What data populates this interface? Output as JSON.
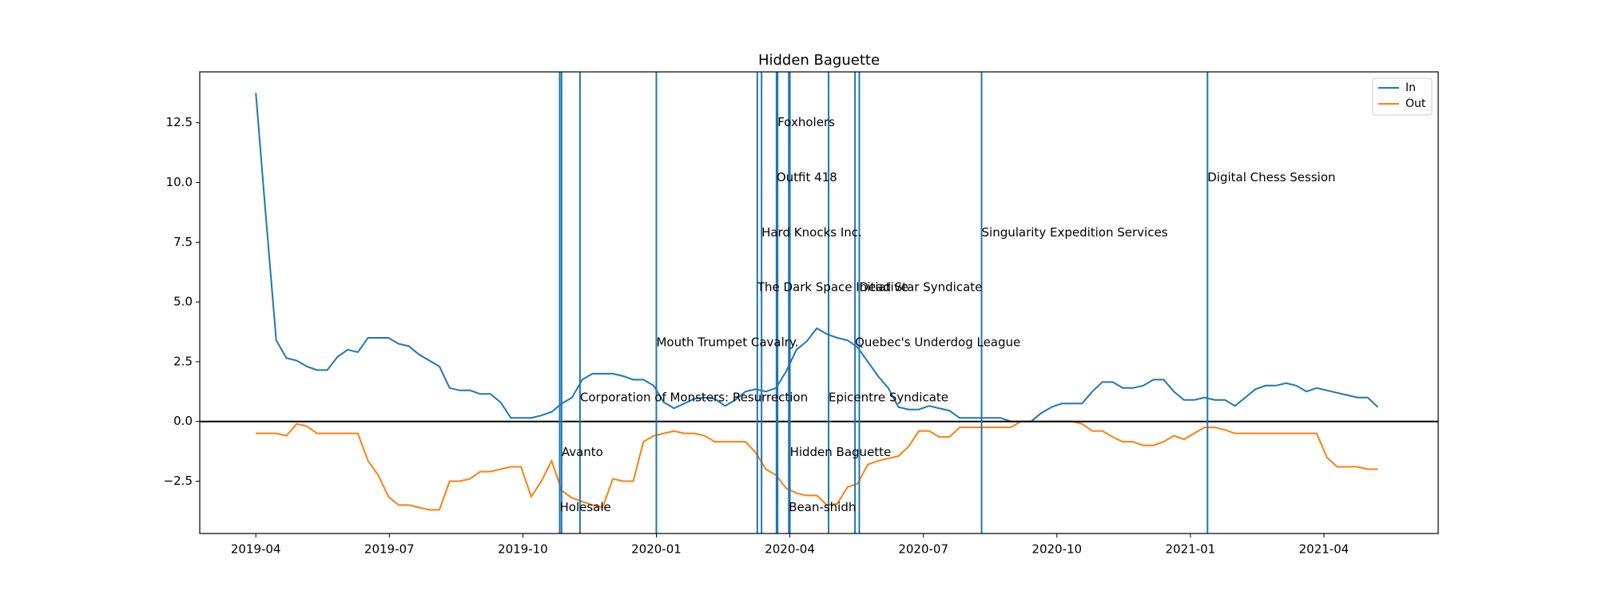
{
  "chart_data": {
    "type": "line",
    "title": "Hidden Baguette",
    "x": [
      2019.25,
      2019.2691,
      2019.2882,
      2019.3073,
      2019.3264,
      2019.3455,
      2019.3646,
      2019.3837,
      2019.4028,
      2019.4219,
      2019.441,
      2019.4601,
      2019.4792,
      2019.4983,
      2019.5174,
      2019.5365,
      2019.5556,
      2019.5747,
      2019.5938,
      2019.6129,
      2019.632,
      2019.6511,
      2019.6702,
      2019.6893,
      2019.7084,
      2019.7275,
      2019.7466,
      2019.7657,
      2019.7848,
      2019.8039,
      2019.823,
      2019.8421,
      2019.8612,
      2019.8803,
      2019.8994,
      2019.9185,
      2019.9376,
      2019.9567,
      2019.9758,
      2019.9949,
      2020.014,
      2020.0331,
      2020.0522,
      2020.0713,
      2020.0904,
      2020.1095,
      2020.1286,
      2020.1477,
      2020.1668,
      2020.1859,
      2020.205,
      2020.2241,
      2020.2432,
      2020.2623,
      2020.2814,
      2020.3005,
      2020.3196,
      2020.3387,
      2020.3578,
      2020.3769,
      2020.396,
      2020.4151,
      2020.4342,
      2020.4533,
      2020.4724,
      2020.4915,
      2020.5106,
      2020.5297,
      2020.5488,
      2020.5679,
      2020.587,
      2020.6061,
      2020.6252,
      2020.6443,
      2020.6634,
      2020.6825,
      2020.7016,
      2020.7207,
      2020.7398,
      2020.7589,
      2020.778,
      2020.7971,
      2020.8162,
      2020.8353,
      2020.8544,
      2020.8735,
      2020.8926,
      2020.9117,
      2020.9308,
      2020.9499,
      2020.969,
      2020.9881,
      2021.0072,
      2021.0263,
      2021.0454,
      2021.0645,
      2021.0836,
      2021.1027,
      2021.1218,
      2021.1409,
      2021.16,
      2021.1791,
      2021.1982,
      2021.2173,
      2021.2364,
      2021.2555,
      2021.2746,
      2021.2937,
      2021.3128,
      2021.3319,
      2021.351
    ],
    "series": [
      {
        "name": "In",
        "color": "#1f77b4",
        "values": [
          13.75,
          8.5,
          3.4,
          2.65,
          2.55,
          2.3,
          2.15,
          2.15,
          2.7,
          3.0,
          2.9,
          3.5,
          3.5,
          3.5,
          3.25,
          3.15,
          2.8,
          2.55,
          2.3,
          1.4,
          1.3,
          1.3,
          1.15,
          1.15,
          0.8,
          0.15,
          0.15,
          0.15,
          0.25,
          0.4,
          0.75,
          1.0,
          1.75,
          2.0,
          2.0,
          2.0,
          1.9,
          1.75,
          1.75,
          1.5,
          0.8,
          0.55,
          0.75,
          0.95,
          1.0,
          0.95,
          0.65,
          0.9,
          1.25,
          1.35,
          1.25,
          1.4,
          2.1,
          3.0,
          3.35,
          3.9,
          3.65,
          3.5,
          3.4,
          3.1,
          2.5,
          1.9,
          1.4,
          0.6,
          0.5,
          0.5,
          0.65,
          0.55,
          0.45,
          0.15,
          0.15,
          0.15,
          0.15,
          0.15,
          0,
          0,
          0,
          0.35,
          0.6,
          0.75,
          0.75,
          0.75,
          1.25,
          1.65,
          1.65,
          1.4,
          1.4,
          1.5,
          1.75,
          1.75,
          1.25,
          0.9,
          0.9,
          1.0,
          0.9,
          0.9,
          0.65,
          1.0,
          1.35,
          1.5,
          1.5,
          1.6,
          1.5,
          1.25,
          1.4,
          1.3,
          1.2,
          1.1,
          1.0,
          1.0,
          0.6
        ]
      },
      {
        "name": "Out",
        "color": "#ff7f0e",
        "values": [
          -0.5,
          -0.5,
          -0.5,
          -0.6,
          -0.1,
          -0.2,
          -0.5,
          -0.5,
          -0.5,
          -0.5,
          -0.5,
          -1.65,
          -2.25,
          -3.15,
          -3.5,
          -3.5,
          -3.6,
          -3.7,
          -3.7,
          -2.5,
          -2.5,
          -2.4,
          -2.1,
          -2.1,
          -2.0,
          -1.9,
          -1.9,
          -3.15,
          -2.5,
          -1.65,
          -2.9,
          -3.2,
          -3.35,
          -3.5,
          -3.6,
          -2.4,
          -2.5,
          -2.5,
          -0.85,
          -0.6,
          -0.5,
          -0.4,
          -0.5,
          -0.5,
          -0.6,
          -0.85,
          -0.85,
          -0.85,
          -0.85,
          -1.3,
          -2.0,
          -2.25,
          -2.8,
          -3.0,
          -3.1,
          -3.1,
          -3.5,
          -3.45,
          -2.75,
          -2.6,
          -1.8,
          -1.65,
          -1.55,
          -1.45,
          -1.05,
          -0.4,
          -0.4,
          -0.65,
          -0.65,
          -0.25,
          -0.25,
          -0.25,
          -0.25,
          -0.25,
          -0.25,
          0,
          0,
          0,
          0,
          0,
          0,
          -0.1,
          -0.4,
          -0.4,
          -0.65,
          -0.85,
          -0.85,
          -1.0,
          -1.0,
          -0.85,
          -0.6,
          -0.75,
          -0.5,
          -0.25,
          -0.25,
          -0.35,
          -0.5,
          -0.5,
          -0.5,
          -0.5,
          -0.5,
          -0.5,
          -0.5,
          -0.5,
          -0.5,
          -1.5,
          -1.9,
          -1.9,
          -1.9,
          -2.0,
          -2.0
        ]
      }
    ],
    "annotations": [
      {
        "x": 2019.819,
        "y": -3.6,
        "label": "Holesale"
      },
      {
        "x": 2019.8225,
        "y": -1.3,
        "label": "Avanto"
      },
      {
        "x": 2019.857,
        "y": 1.0,
        "label": "Corporation of Monsters: Resurrection"
      },
      {
        "x": 2020.0,
        "y": 3.3,
        "label": "Mouth Trumpet Cavalry."
      },
      {
        "x": 2020.189,
        "y": 5.6,
        "label": "The Dark Space Initiative"
      },
      {
        "x": 2020.197,
        "y": 7.9,
        "label": "Hard Knocks Inc."
      },
      {
        "x": 2020.225,
        "y": 10.2,
        "label": "Outfit 418"
      },
      {
        "x": 2020.227,
        "y": 12.5,
        "label": "Foxholers"
      },
      {
        "x": 2020.248,
        "y": -3.6,
        "label": "Bean-shidh"
      },
      {
        "x": 2020.25,
        "y": -1.3,
        "label": "Hidden Baguette"
      },
      {
        "x": 2020.3225,
        "y": 1.0,
        "label": "Epicentre Syndicate"
      },
      {
        "x": 2020.372,
        "y": 3.3,
        "label": "Quebec's Underdog League"
      },
      {
        "x": 2020.38,
        "y": 5.6,
        "label": "Dead Star Syndicate"
      },
      {
        "x": 2020.609,
        "y": 7.9,
        "label": "Singularity Expedition Services"
      },
      {
        "x": 2021.032,
        "y": 10.2,
        "label": "Digital Chess Session"
      }
    ],
    "annotation_color": "#1f77b4",
    "axhline": 0,
    "xlim": [
      2019.145,
      2021.464
    ],
    "ylim": [
      -4.69,
      14.63
    ],
    "xticks": [
      {
        "value": 2019.25,
        "label": "2019-04"
      },
      {
        "value": 2019.5,
        "label": "2019-07"
      },
      {
        "value": 2019.75,
        "label": "2019-10"
      },
      {
        "value": 2020.0,
        "label": "2020-01"
      },
      {
        "value": 2020.25,
        "label": "2020-04"
      },
      {
        "value": 2020.5,
        "label": "2020-07"
      },
      {
        "value": 2020.75,
        "label": "2020-10"
      },
      {
        "value": 2021.0,
        "label": "2021-01"
      },
      {
        "value": 2021.25,
        "label": "2021-04"
      }
    ],
    "yticks": [
      {
        "value": -2.5,
        "label": "−2.5"
      },
      {
        "value": 0,
        "label": "0.0"
      },
      2.5,
      {
        "value": 5,
        "label": "5.0"
      },
      7.5,
      {
        "value": 10,
        "label": "10.0"
      },
      12.5
    ],
    "legend": "upper right"
  }
}
